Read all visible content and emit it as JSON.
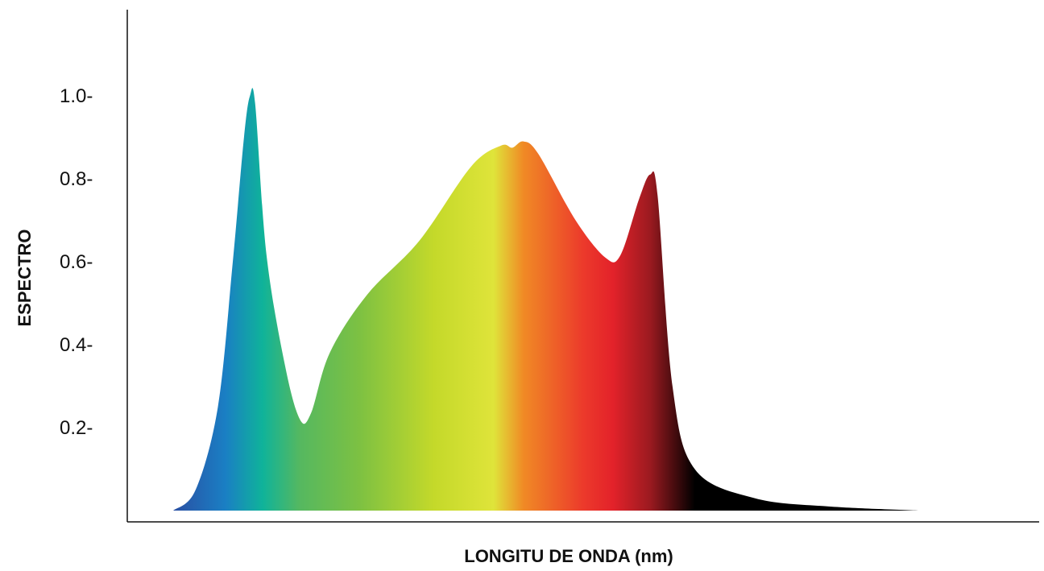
{
  "chart_data": {
    "type": "area",
    "title": "",
    "xlabel": "LONGITU DE ONDA (nm)",
    "ylabel": "ESPECTRO",
    "ylim": [
      0,
      1.1
    ],
    "y_ticks": [
      {
        "value": 0.2,
        "label": "0.2-"
      },
      {
        "value": 0.4,
        "label": "0.4-"
      },
      {
        "value": 0.6,
        "label": "0.6-"
      },
      {
        "value": 0.8,
        "label": "0.8-"
      },
      {
        "value": 1.0,
        "label": "1.0-"
      }
    ],
    "x_tick_labels_shown": false,
    "grid": false,
    "legend": "none",
    "fill": "spectral-gradient",
    "gradient_colors": [
      "#2a4fa3",
      "#1a7fc4",
      "#0fb39a",
      "#55b860",
      "#7dc142",
      "#c4d92a",
      "#dfe43a",
      "#f08a25",
      "#ec3a2b",
      "#e3222a",
      "#9b1a20",
      "#000000"
    ],
    "series": [
      {
        "values": [
          {
            "x": 0.0,
            "y": 0.0
          },
          {
            "x": 0.03,
            "y": 0.05
          },
          {
            "x": 0.06,
            "y": 0.25
          },
          {
            "x": 0.08,
            "y": 0.6
          },
          {
            "x": 0.095,
            "y": 0.9
          },
          {
            "x": 0.103,
            "y": 1.0
          },
          {
            "x": 0.11,
            "y": 0.98
          },
          {
            "x": 0.125,
            "y": 0.62
          },
          {
            "x": 0.15,
            "y": 0.35
          },
          {
            "x": 0.17,
            "y": 0.22
          },
          {
            "x": 0.185,
            "y": 0.235
          },
          {
            "x": 0.21,
            "y": 0.38
          },
          {
            "x": 0.26,
            "y": 0.52
          },
          {
            "x": 0.33,
            "y": 0.65
          },
          {
            "x": 0.4,
            "y": 0.83
          },
          {
            "x": 0.44,
            "y": 0.88
          },
          {
            "x": 0.455,
            "y": 0.875
          },
          {
            "x": 0.47,
            "y": 0.89
          },
          {
            "x": 0.49,
            "y": 0.86
          },
          {
            "x": 0.54,
            "y": 0.7
          },
          {
            "x": 0.58,
            "y": 0.61
          },
          {
            "x": 0.6,
            "y": 0.615
          },
          {
            "x": 0.625,
            "y": 0.75
          },
          {
            "x": 0.64,
            "y": 0.81
          },
          {
            "x": 0.65,
            "y": 0.76
          },
          {
            "x": 0.67,
            "y": 0.3
          },
          {
            "x": 0.7,
            "y": 0.1
          },
          {
            "x": 0.78,
            "y": 0.03
          },
          {
            "x": 0.88,
            "y": 0.01
          },
          {
            "x": 1.0,
            "y": 0.0
          }
        ]
      }
    ]
  }
}
